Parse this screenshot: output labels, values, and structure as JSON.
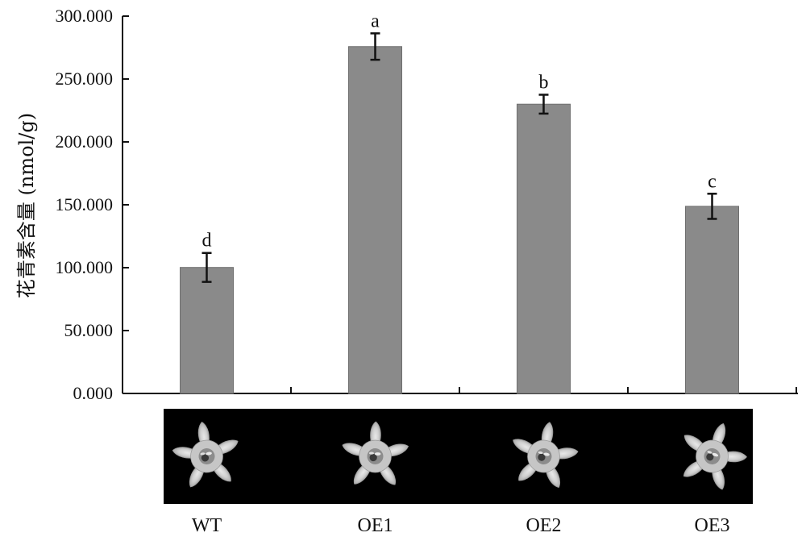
{
  "chart_data": {
    "type": "bar",
    "title": "",
    "xlabel": "",
    "ylabel": "花青素含量 (nmol/g)",
    "ylim": [
      0,
      300
    ],
    "yticks": [
      "0.000",
      "50.000",
      "100.000",
      "150.000",
      "200.000",
      "250.000",
      "300.000"
    ],
    "categories": [
      "WT",
      "OE1",
      "OE2",
      "OE3"
    ],
    "values": [
      100.2,
      275.8,
      230.0,
      148.8
    ],
    "errors": [
      11.5,
      10.5,
      7.5,
      10.0
    ],
    "significance": [
      "d",
      "a",
      "b",
      "c"
    ],
    "grid": false,
    "legend": "none",
    "bar_color": "#8a8a8a",
    "panel_background": "#000000",
    "panel_content": "flower photographs"
  }
}
